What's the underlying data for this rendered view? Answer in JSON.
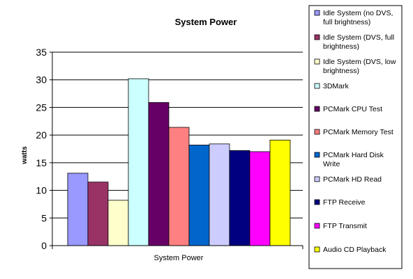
{
  "chart_data": {
    "type": "bar",
    "title": "System Power",
    "xlabel": "System Power",
    "ylabel": "watts",
    "ylim": [
      0,
      35
    ],
    "yticks": [
      0,
      5,
      10,
      15,
      20,
      25,
      30,
      35
    ],
    "grid": true,
    "legend_position": "right",
    "series": [
      {
        "name": "Idle System (no DVS, full brightness)",
        "legend_lines": [
          "Idle System (no DVS,",
          "full brightness)"
        ],
        "value": 13.1,
        "color": "#9999ff"
      },
      {
        "name": "Idle System (DVS, full brightness)",
        "legend_lines": [
          "Idle System (DVS, full",
          "brightness)"
        ],
        "value": 11.5,
        "color": "#993366"
      },
      {
        "name": "Idle System (DVS, low brightness)",
        "legend_lines": [
          "Idle System (DVS, low",
          "brightness)"
        ],
        "value": 8.2,
        "color": "#ffffcc"
      },
      {
        "name": "3DMark",
        "legend_lines": [
          "3DMark"
        ],
        "value": 30.2,
        "color": "#ccffff"
      },
      {
        "name": "PCMark CPU Test",
        "legend_lines": [
          "PCMark CPU Test"
        ],
        "value": 25.9,
        "color": "#660066"
      },
      {
        "name": "PCMark Memory Test",
        "legend_lines": [
          "PCMark Memory Test"
        ],
        "value": 21.4,
        "color": "#ff8080"
      },
      {
        "name": "PCMark Hard Disk Write",
        "legend_lines": [
          "PCMark Hard Disk",
          "Write"
        ],
        "value": 18.2,
        "color": "#0066cc"
      },
      {
        "name": "PCMark HD Read",
        "legend_lines": [
          "PCMark HD Read"
        ],
        "value": 18.4,
        "color": "#ccccff"
      },
      {
        "name": "FTP Receive",
        "legend_lines": [
          "FTP Receive"
        ],
        "value": 17.2,
        "color": "#000080"
      },
      {
        "name": "FTP Transmit",
        "legend_lines": [
          "FTP Transmit"
        ],
        "value": 17.0,
        "color": "#ff00ff"
      },
      {
        "name": "Audio CD Playback",
        "legend_lines": [
          "Audio CD Playback"
        ],
        "value": 19.1,
        "color": "#ffff00"
      }
    ]
  }
}
